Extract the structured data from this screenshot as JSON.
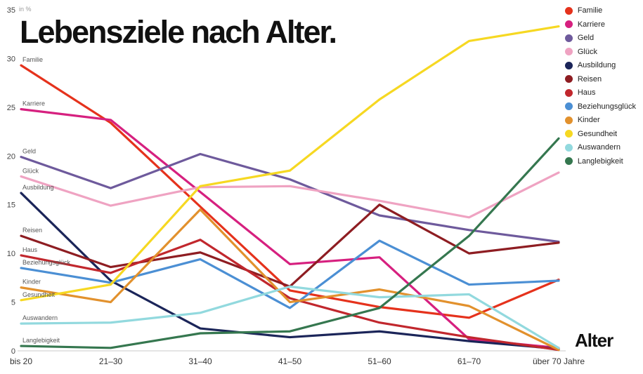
{
  "chart": {
    "title": "Lebensziele nach Alter.",
    "unit_label": "in %",
    "xlabel": "Alter"
  },
  "chart_data": {
    "type": "line",
    "title": "Lebensziele nach Alter.",
    "xlabel": "Alter",
    "ylabel": "in %",
    "ylim": [
      0,
      35
    ],
    "yticks": [
      0,
      5,
      10,
      15,
      20,
      25,
      30,
      35
    ],
    "grid": false,
    "legend_position": "top-right",
    "categories": [
      "bis 20",
      "21–30",
      "31–40",
      "41–50",
      "51–60",
      "61–70",
      "über 70 Jahre"
    ],
    "series": [
      {
        "name": "Familie",
        "color": "#e5321c",
        "values": [
          29.3,
          23.4,
          14.8,
          6.2,
          4.5,
          3.4,
          7.3
        ]
      },
      {
        "name": "Karriere",
        "color": "#d6207f",
        "values": [
          24.8,
          23.7,
          16.3,
          8.9,
          9.6,
          1.2,
          0.3
        ]
      },
      {
        "name": "Geld",
        "color": "#6e5a9c",
        "values": [
          19.9,
          16.7,
          20.2,
          17.6,
          13.9,
          12.4,
          11.2
        ]
      },
      {
        "name": "Glück",
        "color": "#efa3c2",
        "values": [
          17.9,
          14.9,
          16.8,
          16.9,
          15.4,
          13.7,
          18.3
        ]
      },
      {
        "name": "Ausbildung",
        "color": "#1b2559",
        "values": [
          16.2,
          7.2,
          2.3,
          1.4,
          2.0,
          1.0,
          0.2
        ]
      },
      {
        "name": "Reisen",
        "color": "#8e1d22",
        "values": [
          11.8,
          8.6,
          10.1,
          6.6,
          15.0,
          10.0,
          11.1
        ]
      },
      {
        "name": "Haus",
        "color": "#c1272d",
        "values": [
          9.8,
          8.0,
          11.4,
          5.4,
          2.9,
          1.4,
          0.1
        ]
      },
      {
        "name": "Beziehungsglück",
        "color": "#4b8fd4",
        "values": [
          8.5,
          7.0,
          9.4,
          4.4,
          11.3,
          6.8,
          7.2
        ]
      },
      {
        "name": "Kinder",
        "color": "#e2912d",
        "values": [
          6.5,
          5.0,
          14.5,
          5.0,
          6.3,
          4.6,
          0.1
        ]
      },
      {
        "name": "Gesundheit",
        "color": "#f6d822",
        "values": [
          5.2,
          6.8,
          16.9,
          18.5,
          25.8,
          31.8,
          33.3
        ]
      },
      {
        "name": "Auswandern",
        "color": "#92d9de",
        "values": [
          2.8,
          2.9,
          3.9,
          6.6,
          5.5,
          5.8,
          0.3
        ]
      },
      {
        "name": "Langlebigkeit",
        "color": "#35774f",
        "values": [
          0.5,
          0.3,
          1.8,
          2.0,
          4.4,
          11.8,
          21.8
        ]
      }
    ]
  }
}
